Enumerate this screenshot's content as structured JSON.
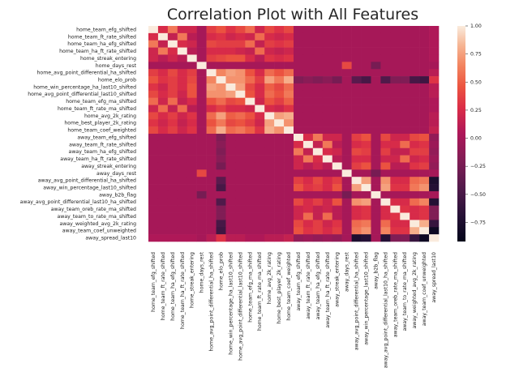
{
  "chart_data": {
    "type": "heatmap",
    "title": "Correlation Plot with All Features",
    "colormap": "rocket",
    "vmin": -0.92,
    "vmax": 1.0,
    "colorbar_ticks": [
      1.0,
      0.75,
      0.5,
      0.25,
      0.0,
      -0.25,
      -0.5,
      -0.75
    ],
    "colorbar_tick_labels": [
      "1.00",
      "0.75",
      "0.50",
      "0.25",
      "0.00",
      "−0.25",
      "−0.50",
      "−0.75"
    ],
    "features": [
      "home_team_efg_shifted",
      "home_team_ft_rate_shifted",
      "home_team_ha_efg_shifted",
      "home_team_ha_ft_rate_shifted",
      "home_streak_entering",
      "home_days_rest",
      "home_avg_point_differential_ha_shifted",
      "home_elo_prob",
      "home_win_percentage_ha_last10_shifted",
      "home_avg_point_differential_last10_shifted",
      "home_team_efg_ma_shifted",
      "home_team_ft_rate_ma_shifted",
      "home_avg_2k_rating",
      "home_best_player_2k_rating",
      "home_team_coef_weighted",
      "away_team_efg_shifted",
      "away_team_ft_rate_shifted",
      "away_team_ha_efg_shifted",
      "away_team_ha_ft_rate_shifted",
      "away_streak_entering",
      "away_days_rest",
      "away_avg_point_differential_ha_shifted",
      "away_win_percentage_last10_shifted",
      "away_b2b_flag",
      "away_avg_point_differential_last10_ha_shifted",
      "away_team_oreb_rate_ma_shifted",
      "away_team_to_rate_ma_shifted",
      "away_weighted_avg_2k_rating",
      "away_team_coef_unweighted",
      "away_spread_last10"
    ],
    "y_tick_labels": [
      "home_team_efg_shifted",
      "home_team_ft_rate_shifted",
      "home_team_ha_efg_shifted",
      "home_team_ha_ft_rate_shifted",
      "home_streak_entering",
      "home_days_rest",
      "home_avg_point_differential_ha_shifted",
      "home_elo_prob",
      "home_win_percentage_ha_last10_shifted",
      "home_avg_point_differential_last10_shifted",
      "home_team_efg_ma_shifted",
      "home_team_ft_rate_ma_shifted",
      "home_avg_2k_rating",
      "home_best_player_2k_rating",
      "home_team_coef_weighted",
      "away_team_efg_shifted",
      "away_team_ft_rate_shifted",
      "away_team_ha_efg_shifted",
      "away_team_ha_ft_rate_shifted",
      "away_streak_entering",
      "away_days_rest",
      "away_avg_point_differential_ha_shifted",
      "away_win_percentage_last10_shifted",
      "away_b2b_flag",
      "away_avg_point_differential_last10_ha_shifted",
      "away_team_oreb_rate_ma_shifted",
      "away_team_to_rate_ma_shifted",
      "away_weighted_avg_2k_rating",
      "away_team_coef_unweighted",
      "away_spread_last10"
    ],
    "x_tick_labels": [
      "home_team_efg_shifted",
      "home_team_ft_rate_shifted",
      "home_team_ha_efg_shifted",
      "home_team_ha_ft_rate_shifted",
      "home_streak_entering",
      "home_days_rest",
      "home_avg_point_differential_ha_shifted",
      "home_elo_prob",
      "home_win_percentage_ha_last10_shifted",
      "home_avg_point_differential_last10_shifted",
      "home_team_efg_ma_shifted",
      "home_team_ft_rate_ma_shifted",
      "home_avg_2k_rating",
      "home_best_player_2k_rating",
      "home_team_coef_weighted",
      "away_team_efg_shifted",
      "away_team_ft_rate_shifted",
      "away_team_ha_efg_shifted",
      "away_team_ha_ft_rate_shifted",
      "away_streak_entering",
      "away_days_rest",
      "away_avg_point_differential_ha_shifted",
      "away_win_percentage_last10_shifted",
      "away_b2b_flag",
      "away_avg_point_differential_last10_ha_shifted",
      "away_team_oreb_rate_ma_shifted",
      "away_team_to_rate_ma_shifted",
      "away_weighted_avg_2k_rating",
      "away_team_coef_unweighted",
      "away_spread_last10"
    ],
    "values": [
      [
        1,
        0.25,
        0.6,
        0.2,
        0.2,
        0,
        0.35,
        0.45,
        0.3,
        0.4,
        0.55,
        0.2,
        0.4,
        0.3,
        0.4,
        0,
        0,
        0,
        0,
        0,
        0,
        0,
        0,
        0,
        0,
        0,
        0,
        0,
        0,
        0.05
      ],
      [
        0.25,
        1,
        0.15,
        0.6,
        0.1,
        0,
        0.25,
        0.3,
        0.2,
        0.25,
        0.2,
        0.55,
        0.25,
        0.2,
        0.25,
        0,
        0,
        0,
        0,
        0,
        0,
        0,
        0,
        0,
        0,
        0,
        0,
        0,
        0,
        0.05
      ],
      [
        0.6,
        0.15,
        1,
        0.25,
        0.2,
        0,
        0.4,
        0.35,
        0.35,
        0.35,
        0.55,
        0.15,
        0.35,
        0.3,
        0.35,
        0,
        0,
        0,
        0,
        0,
        0,
        0,
        0,
        0,
        0,
        0,
        0,
        0,
        0,
        0.05
      ],
      [
        0.2,
        0.6,
        0.25,
        1,
        0.1,
        0,
        0.25,
        0.25,
        0.25,
        0.2,
        0.15,
        0.55,
        0.2,
        0.15,
        0.2,
        0,
        0,
        0,
        0,
        0,
        0,
        0,
        0,
        0,
        0,
        0,
        0,
        0,
        0,
        0.05
      ],
      [
        0.2,
        0.1,
        0.2,
        0.1,
        1,
        0,
        0.35,
        0.4,
        0.45,
        0.45,
        0.25,
        0.1,
        0.3,
        0.25,
        0.3,
        0,
        0,
        0,
        0,
        0,
        0,
        0,
        0,
        0,
        0,
        0,
        0,
        0,
        0,
        0.05
      ],
      [
        0,
        0,
        0,
        0,
        0,
        1,
        0,
        0,
        0,
        0,
        0,
        0,
        0,
        0,
        0,
        0,
        0,
        0,
        0,
        0,
        0.4,
        0,
        0,
        -0.25,
        0,
        0,
        0,
        0,
        0,
        0
      ],
      [
        0.35,
        0.25,
        0.4,
        0.25,
        0.35,
        0,
        1,
        0.65,
        0.75,
        0.7,
        0.45,
        0.25,
        0.55,
        0.45,
        0.55,
        0,
        0,
        0,
        0,
        0,
        0,
        0,
        0,
        0,
        0,
        0,
        0,
        0,
        0,
        0.1
      ],
      [
        0.45,
        0.3,
        0.35,
        0.25,
        0.4,
        0,
        0.65,
        1,
        0.7,
        0.7,
        0.55,
        0.35,
        0.75,
        0.6,
        0.8,
        -0.2,
        -0.15,
        -0.2,
        -0.15,
        -0.25,
        0,
        -0.4,
        -0.5,
        0,
        -0.45,
        -0.2,
        -0.2,
        -0.5,
        -0.55,
        0.3
      ],
      [
        0.3,
        0.2,
        0.35,
        0.25,
        0.45,
        0,
        0.75,
        0.7,
        1,
        0.75,
        0.4,
        0.25,
        0.5,
        0.4,
        0.55,
        0,
        0,
        0,
        0,
        0,
        0,
        0,
        0,
        0,
        0,
        0,
        0,
        0,
        0,
        0.1
      ],
      [
        0.4,
        0.25,
        0.35,
        0.2,
        0.45,
        0,
        0.7,
        0.7,
        0.75,
        1,
        0.45,
        0.25,
        0.55,
        0.45,
        0.6,
        0,
        0,
        0,
        0,
        0,
        0,
        0,
        0,
        0,
        0,
        0,
        0,
        0,
        0,
        0.1
      ],
      [
        0.55,
        0.2,
        0.55,
        0.15,
        0.25,
        0,
        0.45,
        0.55,
        0.4,
        0.45,
        1,
        0.2,
        0.45,
        0.35,
        0.5,
        0,
        0,
        0,
        0,
        0,
        0,
        0,
        0,
        0,
        0,
        0,
        0,
        0,
        0,
        0.05
      ],
      [
        0.2,
        0.55,
        0.15,
        0.55,
        0.1,
        0,
        0.25,
        0.35,
        0.25,
        0.25,
        0.2,
        1,
        0.25,
        0.2,
        0.3,
        0,
        0,
        0,
        0,
        0,
        0,
        0,
        0,
        0,
        0,
        0,
        0,
        0,
        0,
        0.05
      ],
      [
        0.4,
        0.25,
        0.35,
        0.2,
        0.3,
        0,
        0.55,
        0.75,
        0.5,
        0.55,
        0.45,
        0.25,
        1,
        0.75,
        0.8,
        0,
        0,
        0,
        0,
        0,
        0,
        0,
        0,
        0,
        0,
        0,
        0,
        0,
        0,
        0.1
      ],
      [
        0.3,
        0.2,
        0.3,
        0.15,
        0.25,
        0,
        0.45,
        0.6,
        0.4,
        0.45,
        0.35,
        0.2,
        0.75,
        1,
        0.7,
        0,
        0,
        0,
        0,
        0,
        0,
        0,
        0,
        0,
        0,
        0,
        0,
        0,
        0,
        0.1
      ],
      [
        0.4,
        0.25,
        0.35,
        0.2,
        0.3,
        0,
        0.55,
        0.8,
        0.55,
        0.6,
        0.5,
        0.3,
        0.8,
        0.7,
        1,
        0,
        0,
        0,
        0,
        0,
        0,
        0,
        0,
        0,
        0,
        0,
        0,
        0,
        0,
        0.15
      ],
      [
        0,
        0,
        0,
        0,
        0,
        0,
        0,
        -0.2,
        0,
        0,
        0,
        0,
        0,
        0,
        0,
        1,
        0.25,
        0.6,
        0.2,
        0.2,
        0,
        0.35,
        0.45,
        0,
        0.4,
        0.2,
        0.2,
        0.4,
        0.45,
        -0.1
      ],
      [
        0,
        0,
        0,
        0,
        0,
        0,
        0,
        -0.15,
        0,
        0,
        0,
        0,
        0,
        0,
        0,
        0.25,
        1,
        0.15,
        0.6,
        0.1,
        0,
        0.25,
        0.3,
        0,
        0.25,
        0.25,
        0.55,
        0.25,
        0.3,
        -0.05
      ],
      [
        0,
        0,
        0,
        0,
        0,
        0,
        0,
        -0.2,
        0,
        0,
        0,
        0,
        0,
        0,
        0,
        0.6,
        0.15,
        1,
        0.25,
        0.2,
        0,
        0.4,
        0.35,
        0,
        0.35,
        0.15,
        0.15,
        0.35,
        0.35,
        -0.1
      ],
      [
        0,
        0,
        0,
        0,
        0,
        0,
        0,
        -0.15,
        0,
        0,
        0,
        0,
        0,
        0,
        0,
        0.2,
        0.6,
        0.25,
        1,
        0.1,
        0,
        0.25,
        0.25,
        0,
        0.2,
        0.2,
        0.55,
        0.2,
        0.25,
        -0.05
      ],
      [
        0,
        0,
        0,
        0,
        0,
        0,
        0,
        -0.25,
        0,
        0,
        0,
        0,
        0,
        0,
        0,
        0.2,
        0.1,
        0.2,
        0.1,
        1,
        0,
        0.35,
        0.45,
        0,
        0.45,
        0.1,
        0.1,
        0.3,
        0.35,
        -0.1
      ],
      [
        0,
        0,
        0,
        0,
        0,
        0.4,
        0,
        0,
        0,
        0,
        0,
        0,
        0,
        0,
        0,
        0,
        0,
        0,
        0,
        0,
        1,
        0,
        0,
        -0.25,
        0,
        0,
        0,
        0,
        0,
        0
      ],
      [
        0,
        0,
        0,
        0,
        0,
        0,
        0,
        -0.4,
        0,
        0,
        0,
        0,
        0,
        0,
        0,
        0.35,
        0.25,
        0.4,
        0.25,
        0.35,
        0,
        1,
        0.75,
        0,
        0.7,
        0.25,
        0.25,
        0.55,
        0.6,
        -0.75
      ],
      [
        0,
        0,
        0,
        0,
        0,
        0,
        0,
        -0.5,
        0,
        0,
        0,
        0,
        0,
        0,
        0,
        0.45,
        0.3,
        0.35,
        0.25,
        0.45,
        0,
        0.75,
        1,
        0,
        0.75,
        0.3,
        0.3,
        0.6,
        0.7,
        -0.7
      ],
      [
        0,
        0,
        0,
        0,
        0,
        -0.25,
        0,
        0,
        0,
        0,
        0,
        0,
        0,
        0,
        0,
        0,
        0,
        0,
        0,
        0,
        -0.25,
        0,
        0,
        1,
        0,
        0,
        0,
        0,
        0,
        0
      ],
      [
        0,
        0,
        0,
        0,
        0,
        0,
        0,
        -0.45,
        0,
        0,
        0,
        0,
        0,
        0,
        0,
        0.4,
        0.25,
        0.35,
        0.2,
        0.45,
        0,
        0.7,
        0.75,
        0,
        1,
        0.25,
        0.25,
        0.55,
        0.65,
        -0.7
      ],
      [
        0,
        0,
        0,
        0,
        0,
        0,
        0,
        -0.2,
        0,
        0,
        0,
        0,
        0,
        0,
        0,
        0.2,
        0.25,
        0.15,
        0.2,
        0.1,
        0,
        0.25,
        0.3,
        0,
        0.25,
        1,
        0.3,
        0.25,
        0.3,
        -0.2
      ],
      [
        0,
        0,
        0,
        0,
        0,
        0,
        0,
        -0.2,
        0,
        0,
        0,
        0,
        0,
        0,
        0,
        0.2,
        0.55,
        0.15,
        0.55,
        0.1,
        0,
        0.25,
        0.3,
        0,
        0.25,
        0.3,
        1,
        0.25,
        0.3,
        -0.2
      ],
      [
        0,
        0,
        0,
        0,
        0,
        0,
        0,
        -0.5,
        0,
        0,
        0,
        0,
        0,
        0,
        0,
        0.4,
        0.25,
        0.35,
        0.2,
        0.3,
        0,
        0.55,
        0.6,
        0,
        0.55,
        0.25,
        0.25,
        1,
        0.8,
        -0.6
      ],
      [
        0,
        0,
        0,
        0,
        0,
        0,
        0,
        -0.55,
        0,
        0,
        0,
        0,
        0,
        0,
        0,
        0.45,
        0.3,
        0.35,
        0.25,
        0.35,
        0,
        0.6,
        0.7,
        0,
        0.65,
        0.3,
        0.3,
        0.8,
        1,
        -0.85
      ],
      [
        0.05,
        0.05,
        0.05,
        0.05,
        0.05,
        0,
        0.1,
        0.3,
        0.1,
        0.1,
        0.05,
        0.05,
        0.1,
        0.1,
        0.15,
        -0.1,
        -0.05,
        -0.1,
        -0.05,
        -0.1,
        0,
        -0.75,
        -0.7,
        0,
        -0.7,
        -0.2,
        -0.2,
        -0.6,
        -0.85,
        1
      ]
    ]
  }
}
